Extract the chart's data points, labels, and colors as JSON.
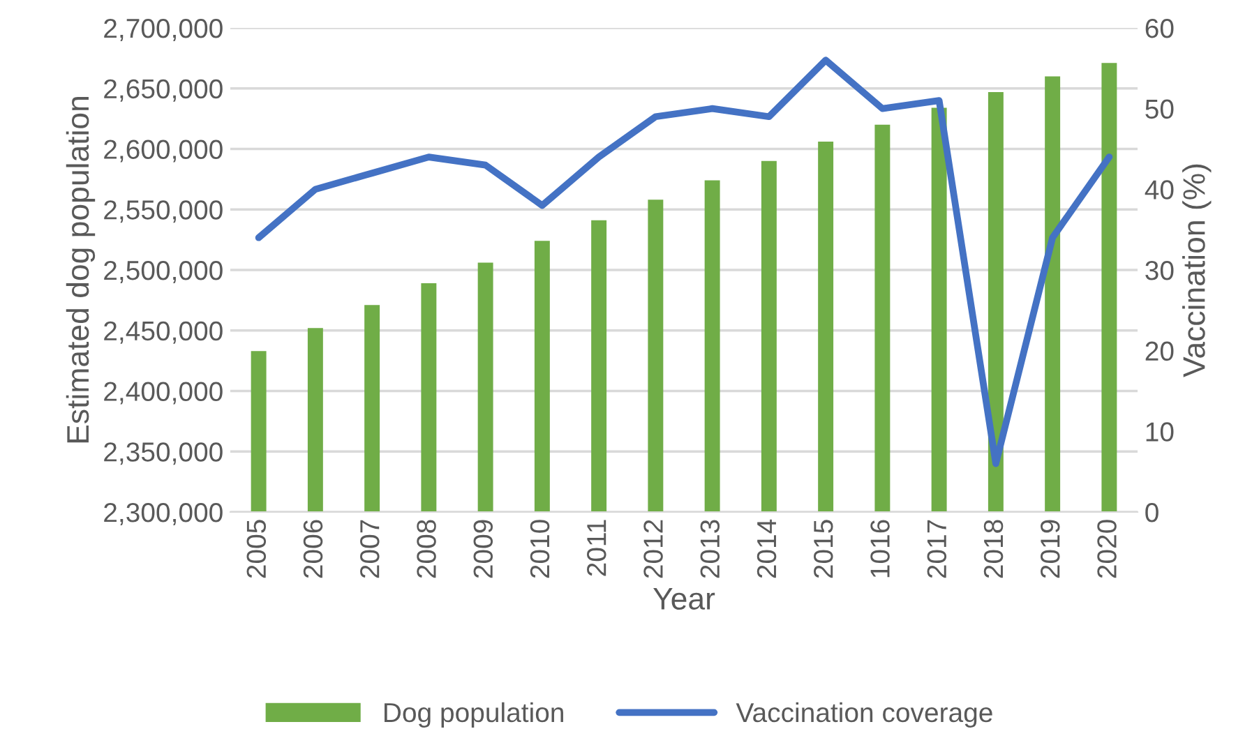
{
  "chart_data": {
    "type": "bar",
    "xlabel": "Year",
    "ylabel": "Estimated dog population",
    "y2label": "Vaccination (%)",
    "categories": [
      "2005",
      "2006",
      "2007",
      "2008",
      "2009",
      "2010",
      "2011",
      "2012",
      "2013",
      "2014",
      "2015",
      "1016",
      "2017",
      "2018",
      "2019",
      "2020"
    ],
    "series": [
      {
        "name": "Dog population",
        "color": "#70ad47",
        "values": [
          2433000,
          2452000,
          2471000,
          2489000,
          2506000,
          2524000,
          2541000,
          2558000,
          2574000,
          2590000,
          2606000,
          2620000,
          2634000,
          2647000,
          2660000,
          2671000
        ]
      },
      {
        "name": "Vaccination coverage",
        "type": "line",
        "axis": "y2",
        "color": "#4472c4",
        "values": [
          34,
          40,
          42,
          44,
          43,
          38,
          44,
          49,
          50,
          49,
          56,
          50,
          51,
          6,
          34,
          44
        ]
      }
    ],
    "ylim": [
      2300000,
      2700000
    ],
    "yticks": [
      {
        "value": 2300000,
        "label": "2,300,000"
      },
      {
        "value": 2350000,
        "label": "2,350,000"
      },
      {
        "value": 2400000,
        "label": "2,400,000"
      },
      {
        "value": 2450000,
        "label": "2,450,000"
      },
      {
        "value": 2500000,
        "label": "2,500,000"
      },
      {
        "value": 2550000,
        "label": "2,550,000"
      },
      {
        "value": 2600000,
        "label": "2,600,000"
      },
      {
        "value": 2650000,
        "label": "2,650,000"
      },
      {
        "value": 2700000,
        "label": "2,700,000"
      }
    ],
    "y2lim": [
      0,
      60
    ],
    "y2ticks": [
      0,
      10,
      20,
      30,
      40,
      50,
      60
    ],
    "grid": "y",
    "legend": "bottom"
  }
}
